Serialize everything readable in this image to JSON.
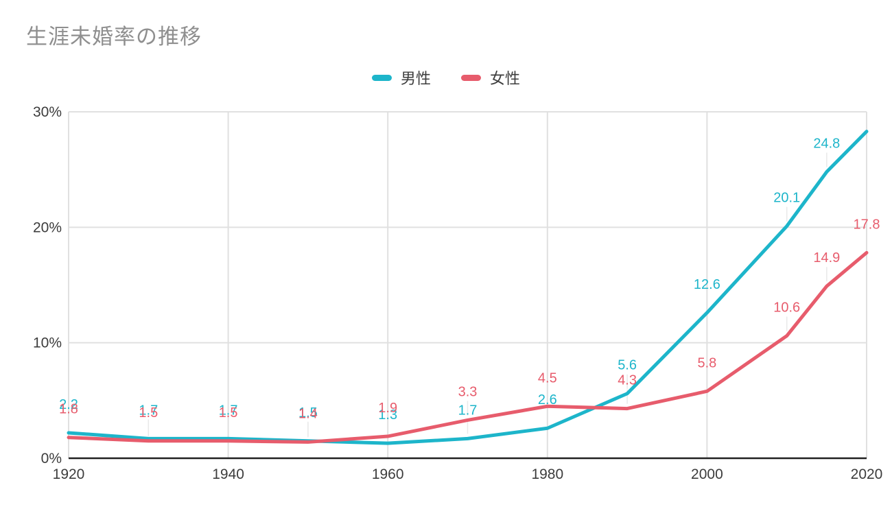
{
  "page": {
    "background": "#ffffff"
  },
  "chart_data": {
    "type": "line",
    "title": "生涯未婚率の推移",
    "x": [
      1920,
      1930,
      1940,
      1950,
      1960,
      1970,
      1980,
      1990,
      2000,
      2010,
      2015,
      2020
    ],
    "series": [
      {
        "name": "男性",
        "color": "#1db5ca",
        "values": [
          2.2,
          1.7,
          1.7,
          1.5,
          1.3,
          1.7,
          2.6,
          5.6,
          12.6,
          20.1,
          24.8,
          28.3
        ],
        "labels": [
          "2.2",
          "1.7",
          "1.7",
          "1.5",
          "1.3",
          "1.7",
          "2.6",
          "5.6",
          "12.6",
          "20.1",
          "24.8",
          ""
        ]
      },
      {
        "name": "女性",
        "color": "#e75c6c",
        "values": [
          1.8,
          1.5,
          1.5,
          1.4,
          1.9,
          3.3,
          4.5,
          4.3,
          5.8,
          10.6,
          14.9,
          17.8
        ],
        "labels": [
          "1.8",
          "1.5",
          "1.5",
          "1.4",
          "1.9",
          "3.3",
          "4.5",
          "4.3",
          "5.8",
          "10.6",
          "14.9",
          "17.8"
        ]
      }
    ],
    "x_ticks": [
      {
        "v": 1920,
        "label": "1920"
      },
      {
        "v": 1940,
        "label": "1940"
      },
      {
        "v": 1960,
        "label": "1960"
      },
      {
        "v": 1980,
        "label": "1980"
      },
      {
        "v": 2000,
        "label": "2000"
      },
      {
        "v": 2020,
        "label": "2020"
      }
    ],
    "y_ticks": [
      {
        "v": 0,
        "label": "0%"
      },
      {
        "v": 10,
        "label": "10%"
      },
      {
        "v": 20,
        "label": "20%"
      },
      {
        "v": 30,
        "label": "30%"
      }
    ],
    "xlim": [
      1920,
      2020
    ],
    "ylim": [
      0,
      30
    ],
    "grid": true,
    "legend_position": "top-center",
    "colors": {
      "title_text": "#8f8f8f",
      "axis_text": "#3c3c3c",
      "legend_text": "#3c3c3c",
      "gridline": "#e0e0e0",
      "leader_line": "#e9e9e9",
      "axis_line": "#212121"
    }
  }
}
